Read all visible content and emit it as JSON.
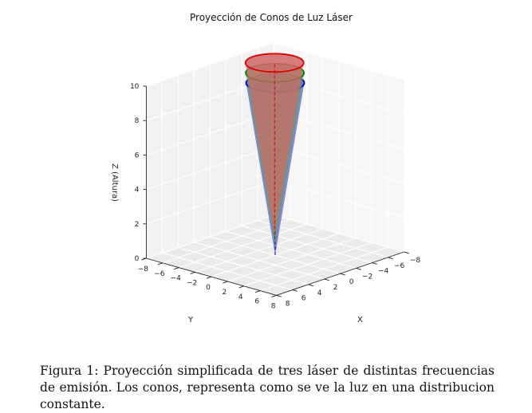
{
  "chart_data": {
    "type": "3d-cone",
    "title": "Proyección de Conos de Luz Láser",
    "xlabel": "X",
    "ylabel": "Y",
    "zlabel": "Z (Altura)",
    "xlim": [
      -8,
      8
    ],
    "ylim": [
      -8,
      8
    ],
    "zlim": [
      0,
      10
    ],
    "x_ticks": [
      "−8",
      "−6",
      "−4",
      "−2",
      "0",
      "2",
      "4",
      "6",
      "8"
    ],
    "y_ticks": [
      "−8",
      "−6",
      "−4",
      "−2",
      "0",
      "2",
      "4",
      "6",
      "8"
    ],
    "z_ticks": [
      "0",
      "2",
      "4",
      "6",
      "8",
      "10"
    ],
    "grid": true,
    "series": [
      {
        "color": "#0000cc",
        "fill": "#5a5ad2",
        "apex": [
          0,
          0,
          0
        ],
        "top_radius": 2.5,
        "height": 10
      },
      {
        "color": "#007700",
        "fill": "#5fa05f",
        "apex": [
          -2,
          -2,
          0
        ],
        "top_radius": 2.5,
        "height": 10
      },
      {
        "color": "#dd0000",
        "fill": "#d26a6a",
        "apex": [
          -4,
          -4,
          0
        ],
        "top_radius": 2.5,
        "height": 10
      }
    ]
  },
  "caption": "Figura 1: Proyección simplificada de tres láser de distintas frecuencias de emisión. Los conos, representa como se ve la luz en una distribucion constante."
}
